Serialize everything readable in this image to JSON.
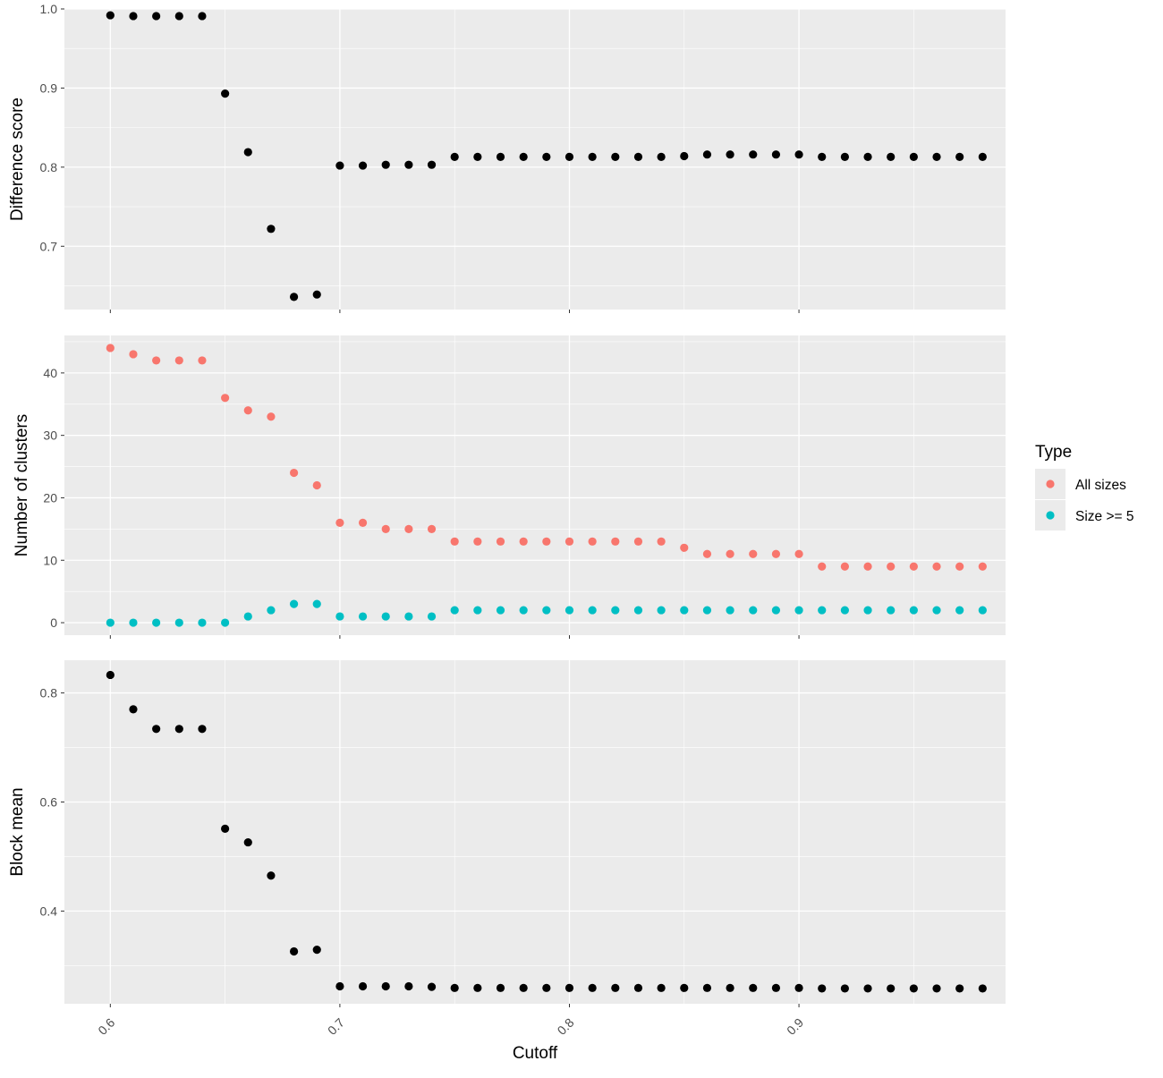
{
  "chart_data": [
    {
      "type": "scatter",
      "xlabel": "Cutoff",
      "ylabel": "Difference score",
      "xlim": [
        0.58,
        0.99
      ],
      "ylim": [
        0.62,
        1.0
      ],
      "x_ticks": [
        0.6,
        0.7,
        0.8,
        0.9
      ],
      "y_ticks": [
        0.7,
        0.8,
        0.9,
        1.0
      ],
      "y_tick_labels": [
        "0.7",
        "0.8",
        "0.9",
        "1.0"
      ],
      "grid": true,
      "series": [
        {
          "color": "#000000",
          "x": [
            0.6,
            0.61,
            0.62,
            0.63,
            0.64,
            0.65,
            0.66,
            0.67,
            0.68,
            0.69,
            0.7,
            0.71,
            0.72,
            0.73,
            0.74,
            0.75,
            0.76,
            0.77,
            0.78,
            0.79,
            0.8,
            0.81,
            0.82,
            0.83,
            0.84,
            0.85,
            0.86,
            0.87,
            0.88,
            0.89,
            0.9,
            0.91,
            0.92,
            0.93,
            0.94,
            0.95,
            0.96,
            0.97,
            0.98
          ],
          "y": [
            0.992,
            0.991,
            0.991,
            0.991,
            0.991,
            0.893,
            0.819,
            0.722,
            0.636,
            0.639,
            0.802,
            0.802,
            0.803,
            0.803,
            0.803,
            0.813,
            0.813,
            0.813,
            0.813,
            0.813,
            0.813,
            0.813,
            0.813,
            0.813,
            0.813,
            0.814,
            0.816,
            0.816,
            0.816,
            0.816,
            0.816,
            0.813,
            0.813,
            0.813,
            0.813,
            0.813,
            0.813,
            0.813,
            0.813
          ]
        }
      ]
    },
    {
      "type": "scatter",
      "xlabel": "Cutoff",
      "ylabel": "Number of clusters",
      "xlim": [
        0.58,
        0.99
      ],
      "ylim": [
        -2,
        46
      ],
      "x_ticks": [
        0.6,
        0.7,
        0.8,
        0.9
      ],
      "y_ticks": [
        0,
        10,
        20,
        30,
        40
      ],
      "y_tick_labels": [
        "0",
        "10",
        "20",
        "30",
        "40"
      ],
      "grid": true,
      "legend": {
        "title": "Type",
        "position": "right",
        "entries": [
          "All sizes",
          "Size >= 5"
        ]
      },
      "series": [
        {
          "name": "All sizes",
          "color": "#F8766D",
          "x": [
            0.6,
            0.61,
            0.62,
            0.63,
            0.64,
            0.65,
            0.66,
            0.67,
            0.68,
            0.69,
            0.7,
            0.71,
            0.72,
            0.73,
            0.74,
            0.75,
            0.76,
            0.77,
            0.78,
            0.79,
            0.8,
            0.81,
            0.82,
            0.83,
            0.84,
            0.85,
            0.86,
            0.87,
            0.88,
            0.89,
            0.9,
            0.91,
            0.92,
            0.93,
            0.94,
            0.95,
            0.96,
            0.97,
            0.98
          ],
          "y": [
            44,
            43,
            42,
            42,
            42,
            36,
            34,
            33,
            24,
            22,
            16,
            16,
            15,
            15,
            15,
            13,
            13,
            13,
            13,
            13,
            13,
            13,
            13,
            13,
            13,
            12,
            11,
            11,
            11,
            11,
            11,
            9,
            9,
            9,
            9,
            9,
            9,
            9,
            9
          ]
        },
        {
          "name": "Size >= 5",
          "color": "#00BFC4",
          "x": [
            0.6,
            0.61,
            0.62,
            0.63,
            0.64,
            0.65,
            0.66,
            0.67,
            0.68,
            0.69,
            0.7,
            0.71,
            0.72,
            0.73,
            0.74,
            0.75,
            0.76,
            0.77,
            0.78,
            0.79,
            0.8,
            0.81,
            0.82,
            0.83,
            0.84,
            0.85,
            0.86,
            0.87,
            0.88,
            0.89,
            0.9,
            0.91,
            0.92,
            0.93,
            0.94,
            0.95,
            0.96,
            0.97,
            0.98
          ],
          "y": [
            0,
            0,
            0,
            0,
            0,
            0,
            1,
            2,
            3,
            3,
            1,
            1,
            1,
            1,
            1,
            2,
            2,
            2,
            2,
            2,
            2,
            2,
            2,
            2,
            2,
            2,
            2,
            2,
            2,
            2,
            2,
            2,
            2,
            2,
            2,
            2,
            2,
            2,
            2
          ]
        }
      ]
    },
    {
      "type": "scatter",
      "xlabel": "Cutoff",
      "ylabel": "Block mean",
      "xlim": [
        0.58,
        0.99
      ],
      "ylim": [
        0.23,
        0.86
      ],
      "x_ticks": [
        0.6,
        0.7,
        0.8,
        0.9
      ],
      "x_tick_labels": [
        "0.6",
        "0.7",
        "0.8",
        "0.9"
      ],
      "y_ticks": [
        0.4,
        0.6,
        0.8
      ],
      "y_tick_labels": [
        "0.4",
        "0.6",
        "0.8"
      ],
      "grid": true,
      "series": [
        {
          "color": "#000000",
          "x": [
            0.6,
            0.61,
            0.62,
            0.63,
            0.64,
            0.65,
            0.66,
            0.67,
            0.68,
            0.69,
            0.7,
            0.71,
            0.72,
            0.73,
            0.74,
            0.75,
            0.76,
            0.77,
            0.78,
            0.79,
            0.8,
            0.81,
            0.82,
            0.83,
            0.84,
            0.85,
            0.86,
            0.87,
            0.88,
            0.89,
            0.9,
            0.91,
            0.92,
            0.93,
            0.94,
            0.95,
            0.96,
            0.97,
            0.98
          ],
          "y": [
            0.833,
            0.77,
            0.734,
            0.734,
            0.734,
            0.551,
            0.526,
            0.465,
            0.326,
            0.329,
            0.262,
            0.262,
            0.262,
            0.262,
            0.261,
            0.259,
            0.259,
            0.259,
            0.259,
            0.259,
            0.259,
            0.259,
            0.259,
            0.259,
            0.259,
            0.259,
            0.259,
            0.259,
            0.259,
            0.259,
            0.259,
            0.258,
            0.258,
            0.258,
            0.258,
            0.258,
            0.258,
            0.258,
            0.258
          ]
        }
      ]
    }
  ]
}
